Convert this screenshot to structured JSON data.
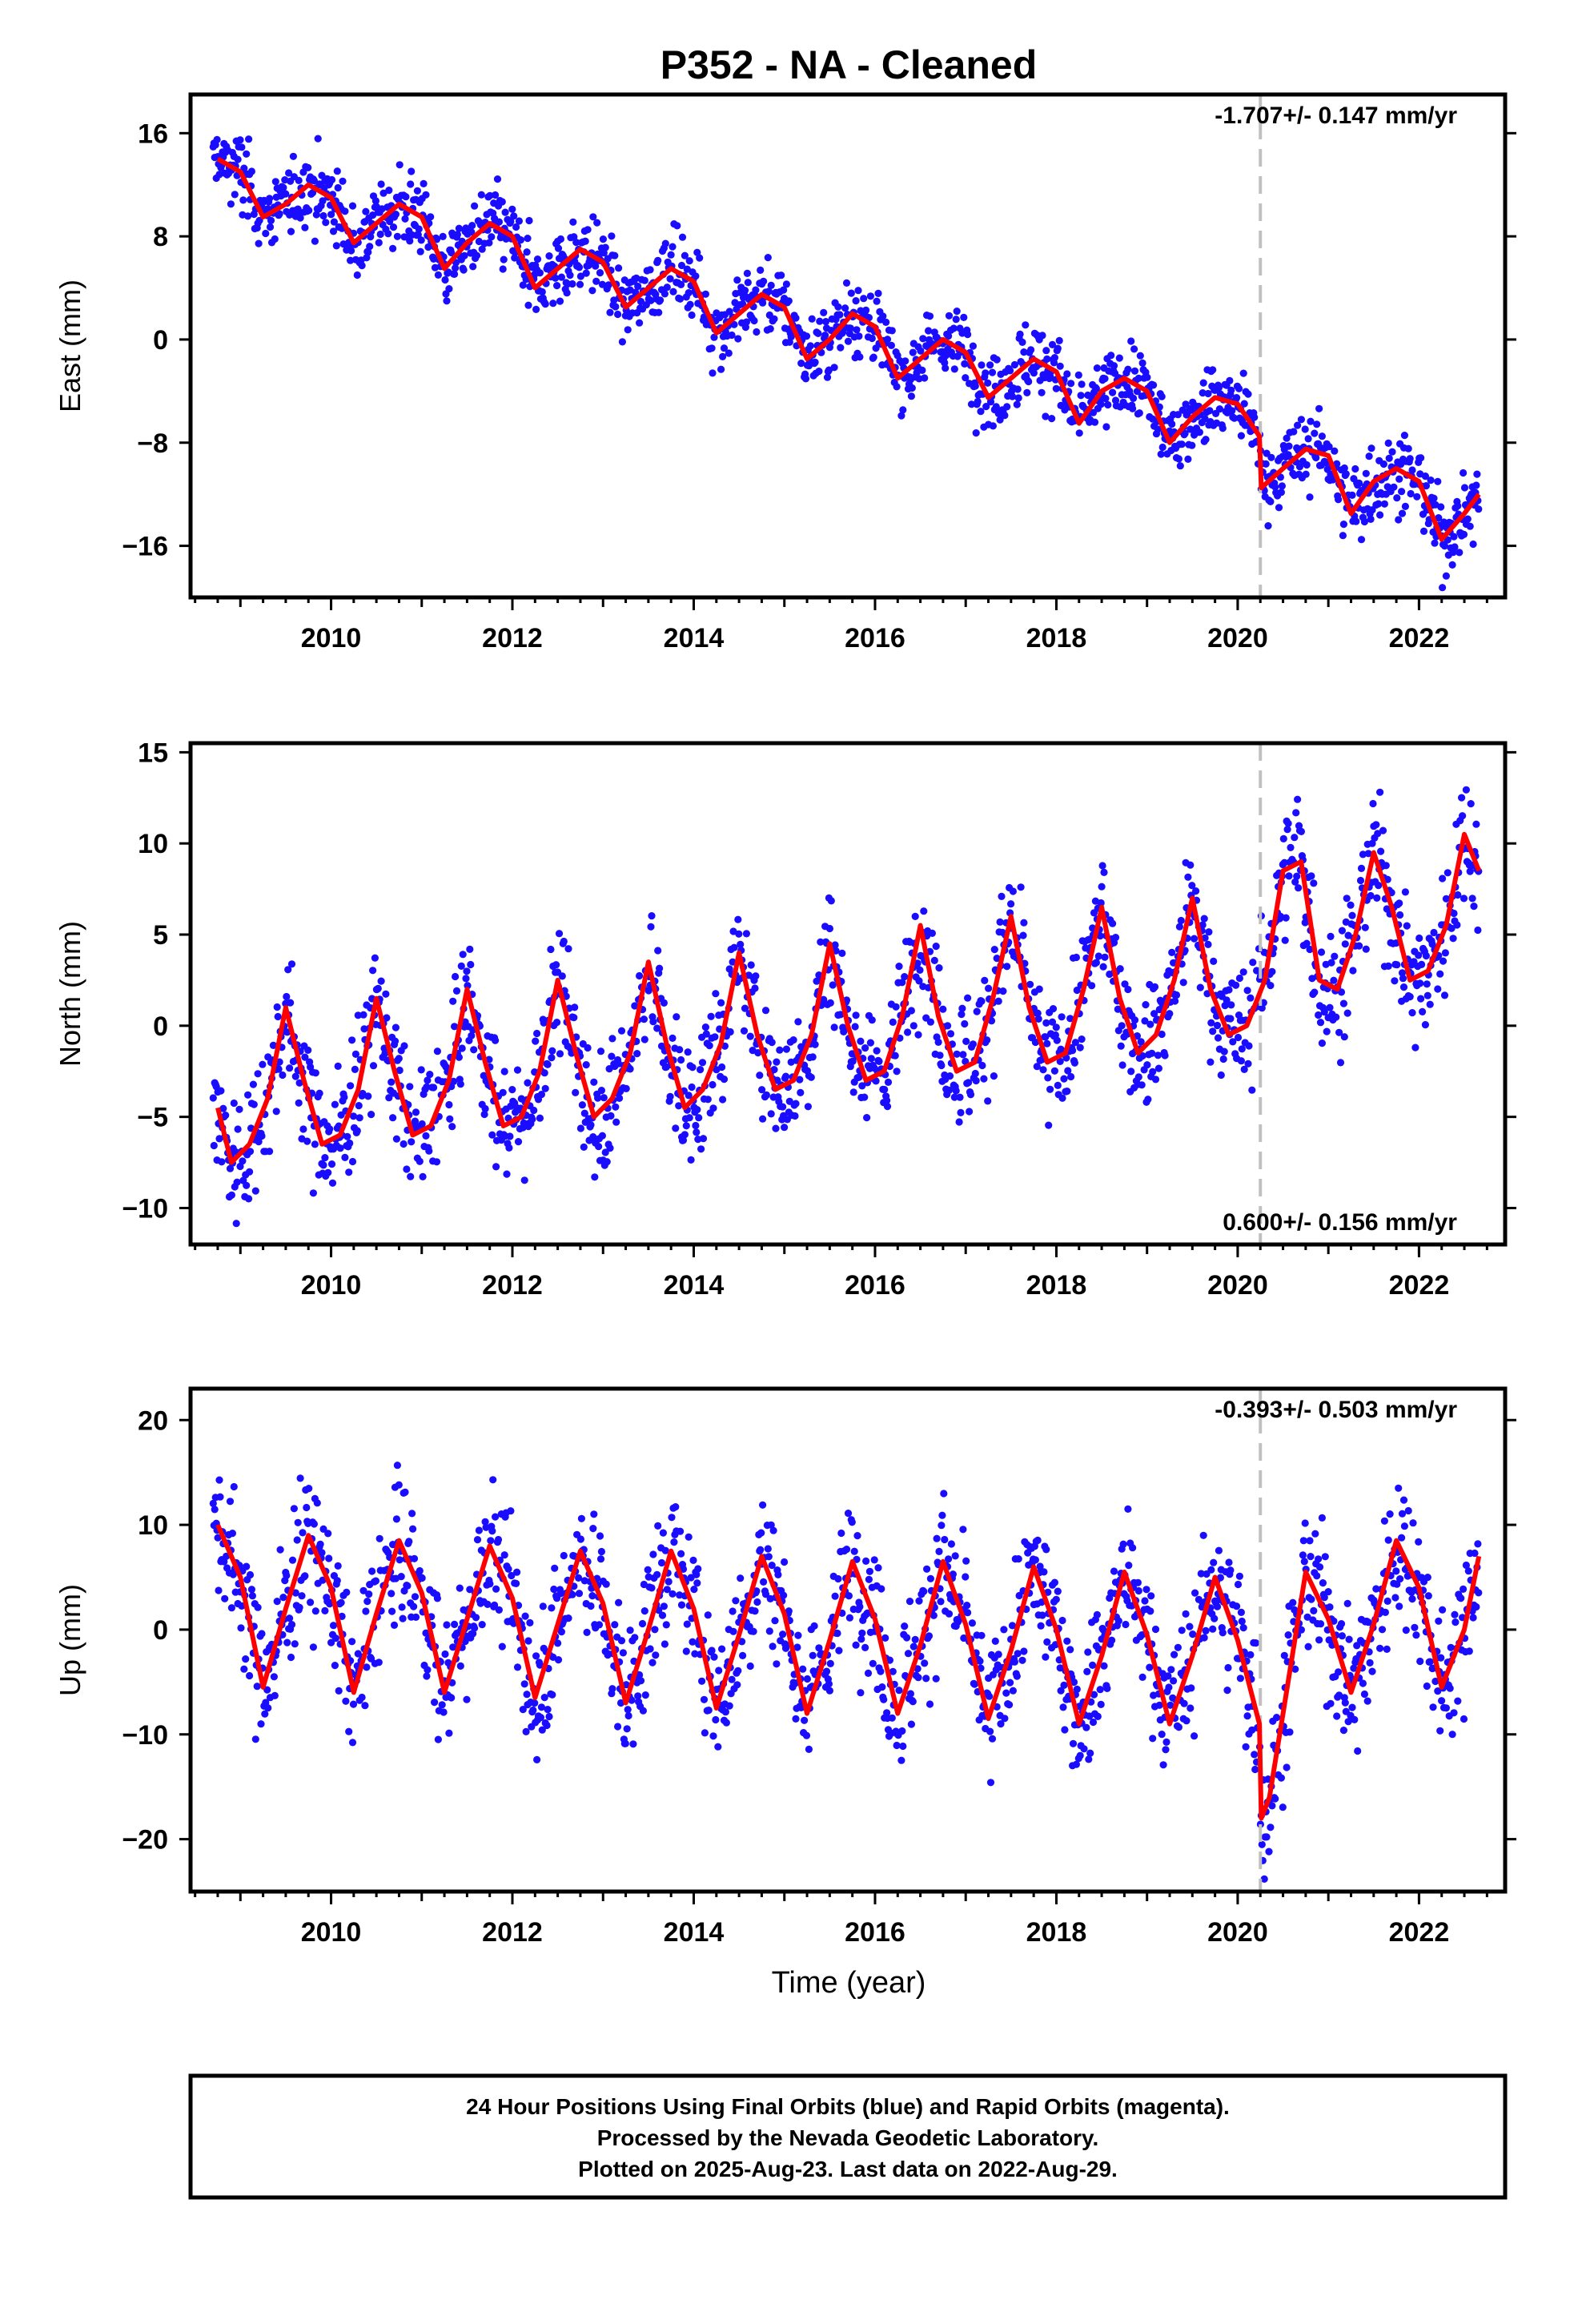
{
  "title": "P352  - NA - Cleaned",
  "x_axis_label": "Time (year)",
  "colors": {
    "points": "#1a0dff",
    "model": "#ff0000",
    "event_line": "#c0c0c0",
    "axes": "#000000"
  },
  "footer": {
    "line1": "24 Hour Positions Using Final Orbits (blue) and Rapid Orbits (magenta).",
    "line2": "Processed by the Nevada Geodetic Laboratory.",
    "line3": "Plotted on 2025-Aug-23. Last data on 2022-Aug-29."
  },
  "chart_data": [
    {
      "type": "scatter",
      "component": "east",
      "ylabel": "East (mm)",
      "rate_label": "-1.707+/- 0.147 mm/yr",
      "rate_position": "top-right",
      "xlim": [
        2008.45,
        2022.95
      ],
      "ylim": [
        -20,
        19
      ],
      "xticks": [
        2010,
        2012,
        2014,
        2016,
        2018,
        2020,
        2022
      ],
      "yticks": [
        16,
        8,
        0,
        -8,
        -16
      ],
      "event_line_x": 2020.25,
      "grid": false,
      "x_range_data": [
        2008.7,
        2022.66
      ],
      "model": {
        "name": "model",
        "x": [
          2008.75,
          2009.0,
          2009.25,
          2009.5,
          2009.75,
          2010.0,
          2010.25,
          2010.5,
          2010.75,
          2011.0,
          2011.25,
          2011.5,
          2011.75,
          2012.0,
          2012.25,
          2012.5,
          2012.75,
          2013.0,
          2013.25,
          2013.5,
          2013.75,
          2014.0,
          2014.25,
          2014.5,
          2014.75,
          2015.0,
          2015.25,
          2015.5,
          2015.75,
          2016.0,
          2016.25,
          2016.5,
          2016.75,
          2017.0,
          2017.25,
          2017.5,
          2017.75,
          2018.0,
          2018.25,
          2018.5,
          2018.75,
          2019.0,
          2019.25,
          2019.5,
          2019.75,
          2020.0,
          2020.24,
          2020.26,
          2020.5,
          2020.75,
          2021.0,
          2021.25,
          2021.5,
          2021.75,
          2022.0,
          2022.25,
          2022.5,
          2022.66
        ],
        "y": [
          14.0,
          13.0,
          9.5,
          10.5,
          12.0,
          11.0,
          7.5,
          9.0,
          10.5,
          9.5,
          5.5,
          7.5,
          9.0,
          8.0,
          4.0,
          5.5,
          7.0,
          6.0,
          2.5,
          4.0,
          5.5,
          4.5,
          0.5,
          2.0,
          3.5,
          2.5,
          -1.5,
          0.0,
          2.0,
          1.0,
          -3.0,
          -1.5,
          0.0,
          -1.0,
          -4.5,
          -3.0,
          -1.5,
          -2.5,
          -6.5,
          -4.0,
          -3.0,
          -4.0,
          -8.0,
          -6.0,
          -4.5,
          -5.0,
          -7.5,
          -11.5,
          -10.0,
          -8.5,
          -9.0,
          -13.5,
          -11.0,
          -10.0,
          -11.0,
          -15.5,
          -13.5,
          -12.0
        ]
      }
    },
    {
      "type": "scatter",
      "component": "north",
      "ylabel": "North (mm)",
      "rate_label": "0.600+/- 0.156 mm/yr",
      "rate_position": "bottom-right",
      "xlim": [
        2008.45,
        2022.95
      ],
      "ylim": [
        -12,
        15.5
      ],
      "xticks": [
        2010,
        2012,
        2014,
        2016,
        2018,
        2020,
        2022
      ],
      "yticks": [
        15,
        10,
        5,
        0,
        -5,
        -10
      ],
      "event_line_x": 2020.25,
      "grid": false,
      "x_range_data": [
        2008.7,
        2022.66
      ],
      "model": {
        "name": "model",
        "x": [
          2008.75,
          2008.9,
          2009.1,
          2009.3,
          2009.5,
          2009.7,
          2009.9,
          2010.1,
          2010.3,
          2010.5,
          2010.7,
          2010.9,
          2011.1,
          2011.3,
          2011.5,
          2011.7,
          2011.9,
          2012.1,
          2012.3,
          2012.5,
          2012.7,
          2012.9,
          2013.1,
          2013.3,
          2013.5,
          2013.7,
          2013.9,
          2014.1,
          2014.3,
          2014.5,
          2014.7,
          2014.9,
          2015.1,
          2015.3,
          2015.5,
          2015.7,
          2015.9,
          2016.1,
          2016.3,
          2016.5,
          2016.7,
          2016.9,
          2017.1,
          2017.3,
          2017.5,
          2017.7,
          2017.9,
          2018.1,
          2018.3,
          2018.5,
          2018.7,
          2018.9,
          2019.1,
          2019.3,
          2019.5,
          2019.7,
          2019.9,
          2020.1,
          2020.3,
          2020.5,
          2020.7,
          2020.9,
          2021.1,
          2021.3,
          2021.5,
          2021.7,
          2021.9,
          2022.1,
          2022.3,
          2022.5,
          2022.66
        ],
        "y": [
          -4.5,
          -7.5,
          -6.5,
          -4.0,
          1.0,
          -3.0,
          -6.5,
          -6.0,
          -3.5,
          1.5,
          -2.5,
          -6.0,
          -5.5,
          -3.0,
          2.0,
          -2.0,
          -5.5,
          -5.0,
          -2.5,
          2.5,
          -1.5,
          -5.0,
          -4.0,
          -1.5,
          3.5,
          -1.0,
          -4.5,
          -3.5,
          -1.0,
          4.0,
          -0.5,
          -3.5,
          -3.0,
          -0.5,
          4.5,
          0.0,
          -3.0,
          -2.5,
          0.5,
          5.5,
          0.5,
          -2.5,
          -2.0,
          1.5,
          6.0,
          1.0,
          -2.0,
          -1.5,
          2.0,
          6.5,
          1.5,
          -1.5,
          -0.5,
          2.5,
          7.0,
          2.0,
          -0.5,
          0.0,
          2.5,
          8.5,
          9.0,
          2.5,
          2.0,
          5.0,
          9.5,
          6.5,
          2.5,
          3.0,
          5.5,
          10.5,
          8.5
        ]
      }
    },
    {
      "type": "scatter",
      "component": "up",
      "ylabel": "Up (mm)",
      "rate_label": "-0.393+/- 0.503 mm/yr",
      "rate_position": "top-right",
      "xlim": [
        2008.45,
        2022.95
      ],
      "ylim": [
        -25,
        23
      ],
      "xticks": [
        2010,
        2012,
        2014,
        2016,
        2018,
        2020,
        2022
      ],
      "yticks": [
        20,
        10,
        0,
        -10,
        -20
      ],
      "event_line_x": 2020.25,
      "grid": false,
      "x_range_data": [
        2008.7,
        2022.66
      ],
      "model": {
        "name": "model",
        "x": [
          2008.75,
          2009.0,
          2009.25,
          2009.5,
          2009.75,
          2010.0,
          2010.25,
          2010.5,
          2010.75,
          2011.0,
          2011.25,
          2011.5,
          2011.75,
          2012.0,
          2012.25,
          2012.5,
          2012.75,
          2013.0,
          2013.25,
          2013.5,
          2013.75,
          2014.0,
          2014.25,
          2014.5,
          2014.75,
          2015.0,
          2015.25,
          2015.5,
          2015.75,
          2016.0,
          2016.25,
          2016.5,
          2016.75,
          2017.0,
          2017.25,
          2017.5,
          2017.75,
          2018.0,
          2018.25,
          2018.5,
          2018.75,
          2019.0,
          2019.25,
          2019.5,
          2019.75,
          2020.0,
          2020.24,
          2020.26,
          2020.35,
          2020.5,
          2020.75,
          2021.0,
          2021.25,
          2021.5,
          2021.75,
          2022.0,
          2022.25,
          2022.5,
          2022.66
        ],
        "y": [
          10.0,
          5.0,
          -5.5,
          2.0,
          9.0,
          4.0,
          -6.0,
          1.5,
          8.5,
          3.5,
          -6.0,
          1.0,
          8.0,
          3.0,
          -6.5,
          0.5,
          7.5,
          2.5,
          -7.0,
          0.0,
          7.5,
          2.0,
          -7.5,
          -0.5,
          7.0,
          1.5,
          -8.0,
          -1.0,
          6.5,
          1.0,
          -8.0,
          -1.5,
          6.5,
          0.5,
          -8.5,
          -2.0,
          6.0,
          0.0,
          -9.0,
          -2.5,
          5.5,
          -0.5,
          -9.0,
          -2.5,
          5.0,
          -1.0,
          -9.0,
          -18.0,
          -16.0,
          -8.0,
          5.5,
          1.0,
          -6.0,
          0.5,
          8.5,
          4.0,
          -5.5,
          0.0,
          7.0
        ]
      }
    }
  ]
}
